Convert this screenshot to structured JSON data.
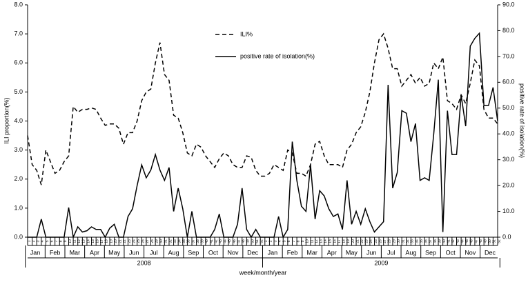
{
  "chart_data": {
    "type": "line",
    "legend_position": "top-center",
    "y_label": "ILI proportion(%)",
    "y2_label": "positive rate of isolation(%)",
    "x_label": "week/month/year",
    "months": [
      "Jan",
      "Feb",
      "Mar",
      "Apr",
      "May",
      "Jun",
      "Jul",
      "Aug",
      "Sep",
      "Oct",
      "Nov",
      "Dec"
    ],
    "years": [
      "2008",
      "2009"
    ],
    "categories": [
      "1",
      "2",
      "3",
      "4",
      "5",
      "6",
      "7",
      "8",
      "9",
      "10",
      "11",
      "12",
      "13",
      "14",
      "15",
      "16",
      "17",
      "18",
      "19",
      "20",
      "21",
      "22",
      "23",
      "24",
      "25",
      "26",
      "27",
      "28",
      "29",
      "30",
      "31",
      "32",
      "33",
      "34",
      "35",
      "36",
      "37",
      "38",
      "39",
      "40",
      "41",
      "42",
      "43",
      "44",
      "45",
      "46",
      "47",
      "48",
      "49",
      "50",
      "51",
      "52",
      "1",
      "2",
      "3",
      "4",
      "5",
      "6",
      "7",
      "8",
      "9",
      "10",
      "11",
      "12",
      "13",
      "14",
      "15",
      "16",
      "17",
      "18",
      "19",
      "20",
      "21",
      "22",
      "23",
      "24",
      "25",
      "26",
      "27",
      "28",
      "29",
      "30",
      "31",
      "32",
      "33",
      "34",
      "35",
      "36",
      "37",
      "38",
      "39",
      "40",
      "41",
      "42",
      "43",
      "44",
      "45",
      "46",
      "47",
      "48",
      "49",
      "50",
      "51",
      "52"
    ],
    "ylim": [
      0,
      8
    ],
    "yticks": [
      {
        "value": 0,
        "label": "0.0"
      },
      {
        "value": 1,
        "label": "1.0"
      },
      {
        "value": 2,
        "label": "2.0"
      },
      {
        "value": 3,
        "label": "3.0"
      },
      {
        "value": 4,
        "label": "4.0"
      },
      {
        "value": 5,
        "label": "5.0"
      },
      {
        "value": 6,
        "label": "6.0"
      },
      {
        "value": 7,
        "label": "7.0"
      },
      {
        "value": 8,
        "label": "8.0"
      }
    ],
    "y2lim": [
      0,
      90
    ],
    "y2ticks": [
      {
        "value": 0,
        "label": "0.0"
      },
      {
        "value": 10,
        "label": "10.0"
      },
      {
        "value": 20,
        "label": "20.0"
      },
      {
        "value": 30,
        "label": "30.0"
      },
      {
        "value": 40,
        "label": "40.0"
      },
      {
        "value": 50,
        "label": "50.0"
      },
      {
        "value": 60,
        "label": "60.0"
      },
      {
        "value": 70,
        "label": "70.0"
      },
      {
        "value": 80,
        "label": "80.0"
      },
      {
        "value": 90,
        "label": "90.0"
      }
    ],
    "series": [
      {
        "name": "ILI%",
        "color": "#000000",
        "dash": true,
        "values": [
          3.5,
          2.5,
          2.3,
          1.8,
          3.0,
          2.6,
          2.2,
          2.3,
          2.6,
          2.8,
          4.5,
          4.3,
          4.4,
          4.4,
          4.45,
          4.4,
          4.1,
          3.85,
          3.9,
          3.9,
          3.75,
          3.2,
          3.6,
          3.6,
          4.0,
          4.7,
          5.0,
          5.1,
          6.0,
          6.7,
          5.6,
          5.4,
          4.2,
          4.1,
          3.6,
          2.9,
          2.8,
          3.2,
          3.1,
          2.8,
          2.6,
          2.4,
          2.7,
          2.9,
          2.8,
          2.5,
          2.4,
          2.4,
          2.8,
          2.75,
          2.3,
          2.1,
          2.1,
          2.2,
          2.5,
          2.4,
          2.3,
          3.0,
          2.9,
          2.2,
          2.2,
          2.1,
          2.5,
          3.2,
          3.3,
          2.8,
          2.5,
          2.5,
          2.5,
          2.4,
          3.0,
          3.2,
          3.6,
          3.8,
          4.3,
          5.0,
          6.0,
          6.8,
          7.0,
          6.5,
          5.8,
          5.8,
          5.2,
          5.4,
          5.6,
          5.3,
          5.5,
          5.2,
          5.3,
          6.0,
          5.8,
          6.2,
          4.7,
          4.6,
          4.4,
          4.9,
          4.6,
          5.3,
          6.1,
          5.9,
          4.4,
          4.1,
          4.1,
          3.9
        ]
      },
      {
        "name": "positive rate of isolation(%)",
        "color": "#000000",
        "dash": false,
        "axis": "y2",
        "values": [
          0,
          0,
          0,
          7,
          0,
          0,
          0,
          0,
          0,
          11.5,
          0,
          4,
          2,
          2.5,
          4,
          3,
          3,
          0,
          3.5,
          5,
          0,
          0,
          8,
          11,
          20,
          28,
          23,
          26,
          32,
          26,
          22,
          27,
          10,
          19,
          11,
          0,
          10,
          0,
          0,
          0,
          0,
          3,
          9,
          0,
          0,
          0,
          5,
          19,
          3,
          0,
          3,
          0,
          0,
          0,
          0,
          8,
          0,
          3,
          37,
          22,
          12,
          10,
          28,
          7,
          18,
          16,
          11,
          8,
          9,
          3,
          22,
          5,
          10,
          5,
          11,
          6,
          2,
          4,
          6,
          59,
          19,
          25,
          49,
          48,
          37,
          44,
          22,
          23,
          22,
          40,
          61,
          2,
          49,
          32,
          32,
          55,
          43,
          74,
          77,
          79,
          51,
          51,
          58,
          45
        ]
      }
    ]
  }
}
